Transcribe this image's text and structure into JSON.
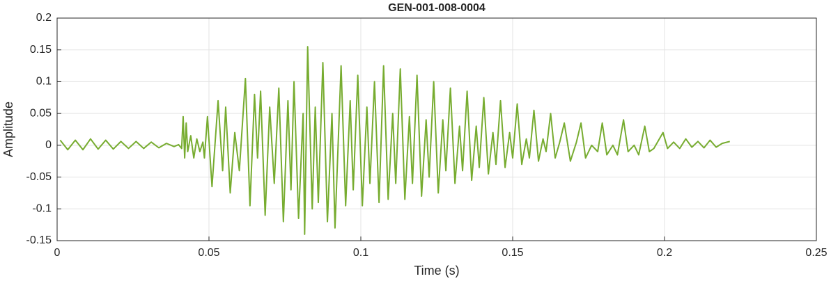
{
  "chart_data": {
    "type": "line",
    "title": "GEN-001-008-0004",
    "xlabel": "Time (s)",
    "ylabel": "Amplitude",
    "x": [
      0.001,
      0.0035,
      0.006,
      0.0085,
      0.011,
      0.0135,
      0.016,
      0.0185,
      0.021,
      0.0235,
      0.026,
      0.0285,
      0.031,
      0.0335,
      0.036,
      0.0385,
      0.04,
      0.041,
      0.0415,
      0.042,
      0.0425,
      0.043,
      0.044,
      0.045,
      0.046,
      0.047,
      0.048,
      0.0485,
      0.0495,
      0.051,
      0.053,
      0.0545,
      0.0555,
      0.057,
      0.0585,
      0.06,
      0.062,
      0.0635,
      0.065,
      0.066,
      0.067,
      0.0685,
      0.07,
      0.0715,
      0.073,
      0.0745,
      0.076,
      0.077,
      0.078,
      0.0795,
      0.081,
      0.0815,
      0.0825,
      0.084,
      0.085,
      0.086,
      0.0875,
      0.089,
      0.0905,
      0.0915,
      0.0935,
      0.095,
      0.0965,
      0.0975,
      0.099,
      0.1005,
      0.102,
      0.103,
      0.1045,
      0.106,
      0.1075,
      0.109,
      0.1105,
      0.1115,
      0.113,
      0.1145,
      0.116,
      0.117,
      0.1185,
      0.12,
      0.1215,
      0.1225,
      0.124,
      0.1255,
      0.127,
      0.128,
      0.1295,
      0.131,
      0.1325,
      0.1335,
      0.135,
      0.1365,
      0.138,
      0.139,
      0.1405,
      0.142,
      0.1435,
      0.1445,
      0.146,
      0.1475,
      0.149,
      0.15,
      0.1515,
      0.153,
      0.1545,
      0.1555,
      0.157,
      0.1585,
      0.16,
      0.161,
      0.1625,
      0.164,
      0.1655,
      0.167,
      0.169,
      0.171,
      0.1725,
      0.174,
      0.176,
      0.178,
      0.1795,
      0.181,
      0.183,
      0.1845,
      0.1865,
      0.188,
      0.19,
      0.1915,
      0.1935,
      0.195,
      0.1965,
      0.1995,
      0.201,
      0.203,
      0.205,
      0.207,
      0.209,
      0.211,
      0.213,
      0.215,
      0.217,
      0.219,
      0.2215
    ],
    "series": [
      {
        "name": "Amplitude",
        "color": "#77ac30",
        "values": [
          0.008,
          -0.007,
          0.008,
          -0.007,
          0.01,
          -0.006,
          0.008,
          -0.006,
          0.006,
          -0.005,
          0.006,
          -0.005,
          0.005,
          -0.004,
          0.003,
          -0.002,
          0.001,
          -0.005,
          0.045,
          -0.02,
          0.035,
          -0.01,
          0.015,
          -0.02,
          0.01,
          -0.01,
          0.005,
          -0.02,
          0.045,
          -0.065,
          0.07,
          -0.04,
          0.06,
          -0.075,
          0.02,
          -0.04,
          0.105,
          -0.095,
          0.08,
          -0.02,
          0.085,
          -0.11,
          0.06,
          -0.06,
          0.09,
          -0.12,
          0.07,
          -0.07,
          0.1,
          -0.115,
          0.05,
          -0.14,
          0.155,
          -0.1,
          0.06,
          -0.09,
          0.13,
          -0.12,
          0.05,
          -0.13,
          0.125,
          -0.095,
          0.07,
          -0.07,
          0.11,
          -0.095,
          0.06,
          -0.06,
          0.1,
          -0.09,
          0.125,
          -0.085,
          0.05,
          -0.06,
          0.12,
          -0.085,
          0.045,
          -0.06,
          0.11,
          -0.08,
          0.04,
          -0.05,
          0.1,
          -0.075,
          0.04,
          -0.04,
          0.09,
          -0.06,
          0.03,
          -0.04,
          0.085,
          -0.055,
          0.03,
          -0.035,
          0.075,
          -0.045,
          0.02,
          -0.03,
          0.07,
          -0.035,
          0.02,
          -0.02,
          0.065,
          -0.03,
          0.01,
          -0.02,
          0.055,
          -0.025,
          0.01,
          -0.01,
          0.05,
          -0.02,
          0.005,
          0.035,
          -0.025,
          0.005,
          0.035,
          -0.02,
          0,
          -0.01,
          0.035,
          -0.015,
          0,
          -0.015,
          0.04,
          -0.01,
          0,
          -0.015,
          0.03,
          -0.01,
          -0.005,
          0.02,
          -0.005,
          0.005,
          -0.005,
          0.01,
          -0.003,
          0.006,
          -0.004,
          0.008,
          -0.003,
          0.003,
          0.006
        ]
      }
    ],
    "xlim": [
      0,
      0.25
    ],
    "xticks": [
      0,
      0.05,
      0.1,
      0.15,
      0.2,
      0.25
    ],
    "ylim": [
      -0.15,
      0.2
    ],
    "yticks": [
      -0.15,
      -0.1,
      -0.05,
      0,
      0.05,
      0.1,
      0.15,
      0.2
    ],
    "grid": true
  }
}
